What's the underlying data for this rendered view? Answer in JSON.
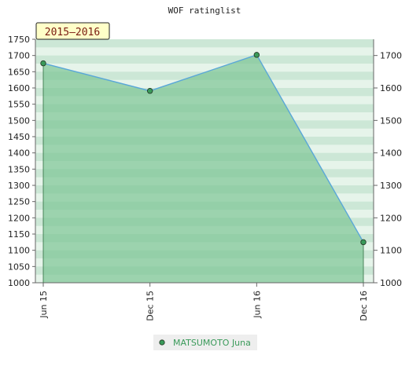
{
  "chart_data": {
    "type": "area",
    "title": "WOF ratinglist",
    "season_label": "2015–2016",
    "categories": [
      "Jun 15",
      "Dec 15",
      "Jun 16",
      "Dec 16"
    ],
    "series": [
      {
        "name": "MATSUMOTO Juna",
        "values": [
          1676,
          1591,
          1702,
          1125
        ]
      }
    ],
    "ylim": [
      1000,
      1750
    ],
    "y_ticks_left": [
      "1000",
      "1050",
      "1100",
      "1150",
      "1200",
      "1250",
      "1300",
      "1350",
      "1400",
      "1450",
      "1500",
      "1550",
      "1600",
      "1650",
      "1700",
      "1750"
    ],
    "y_ticks_right": [
      "1000",
      "1100",
      "1200",
      "1300",
      "1400",
      "1500",
      "1600",
      "1700"
    ],
    "legend_position": "bottom-center",
    "colors": {
      "line": "#5aa7d8",
      "marker": "#3a9a5a",
      "fill": "#7cc594",
      "band_light": "#e6f4ea",
      "band_mid": "#b7ddc4",
      "legend_text": "#3a9a5a",
      "legend_bg": "#eeeeee",
      "season_bg": "#ffffc8"
    }
  }
}
